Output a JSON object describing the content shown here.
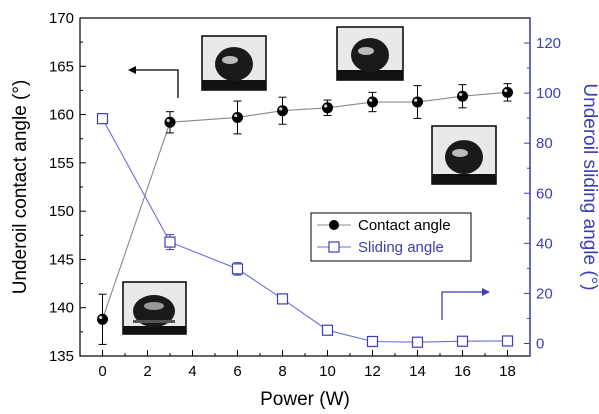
{
  "chart_data": {
    "type": "line",
    "xlabel": "Power (W)",
    "ylabel_left": "Underoil contact angle (°)",
    "ylabel_right": "Underoil sliding angle (°)",
    "x_ticks": [
      "0",
      "2",
      "4",
      "6",
      "8",
      "10",
      "12",
      "14",
      "16",
      "18"
    ],
    "y_left_ticks": [
      "135",
      "140",
      "145",
      "150",
      "155",
      "160",
      "165",
      "170"
    ],
    "y_right_ticks": [
      "0",
      "20",
      "40",
      "60",
      "80",
      "100",
      "120"
    ],
    "xlim": [
      -1,
      19
    ],
    "ylim_left": [
      135,
      170
    ],
    "ylim_right": [
      -5,
      130
    ],
    "grid": false,
    "legend_position": "center-right",
    "series": [
      {
        "name": "Contact angle",
        "axis": "left",
        "marker": "filled-circle",
        "color": "#000000",
        "line_color": "#888888",
        "x": [
          0,
          3,
          6,
          8,
          10,
          12,
          14,
          16,
          18
        ],
        "y": [
          138.8,
          159.2,
          159.7,
          160.4,
          160.7,
          161.3,
          161.3,
          161.9,
          162.3
        ],
        "err": [
          2.6,
          1.1,
          1.7,
          1.4,
          0.8,
          1.0,
          1.7,
          1.2,
          0.9
        ]
      },
      {
        "name": "Sliding angle",
        "axis": "right",
        "marker": "open-square",
        "color": "#3b3fb6",
        "line_color": "#6a6ee0",
        "x": [
          0,
          3,
          6,
          8,
          10,
          12,
          14,
          16,
          18
        ],
        "y": [
          89.8,
          40.5,
          29.8,
          17.8,
          5.3,
          0.8,
          0.5,
          0.9,
          1.0
        ],
        "err": [
          0,
          3.0,
          2.5,
          1.8,
          1.2,
          0.8,
          0.8,
          0.8,
          0.8
        ]
      }
    ]
  }
}
